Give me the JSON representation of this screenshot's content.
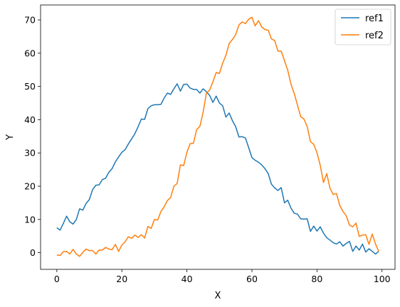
{
  "chart_data": {
    "type": "line",
    "title": "",
    "xlabel": "X",
    "ylabel": "Y",
    "xlim": [
      -5,
      104
    ],
    "ylim": [
      -5,
      74.5
    ],
    "xticks": [
      0,
      20,
      40,
      60,
      80,
      100
    ],
    "yticks": [
      0,
      10,
      20,
      30,
      40,
      50,
      60,
      70
    ],
    "grid": false,
    "legend_position": "top-right",
    "series": [
      {
        "name": "ref1",
        "color": "#1f77b4",
        "x": [
          0,
          1,
          2,
          3,
          4,
          5,
          6,
          7,
          8,
          9,
          10,
          11,
          12,
          13,
          14,
          15,
          16,
          17,
          18,
          19,
          20,
          21,
          22,
          23,
          24,
          25,
          26,
          27,
          28,
          29,
          30,
          31,
          32,
          33,
          34,
          35,
          36,
          37,
          38,
          39,
          40,
          41,
          42,
          43,
          44,
          45,
          46,
          47,
          48,
          49,
          50,
          51,
          52,
          53,
          54,
          55,
          56,
          57,
          58,
          59,
          60,
          61,
          62,
          63,
          64,
          65,
          66,
          67,
          68,
          69,
          70,
          71,
          72,
          73,
          74,
          75,
          76,
          77,
          78,
          79,
          80,
          81,
          82,
          83,
          84,
          85,
          86,
          87,
          88,
          89,
          90,
          91,
          92,
          93,
          94,
          95,
          96,
          97,
          98,
          99
        ],
        "y": [
          7.5,
          6.8,
          8.8,
          11.0,
          9.3,
          8.6,
          10.0,
          13.2,
          12.8,
          14.8,
          16.0,
          19.0,
          20.3,
          20.4,
          22.0,
          22.4,
          24.2,
          25.3,
          27.3,
          28.8,
          30.2,
          31.0,
          32.7,
          34.2,
          35.8,
          37.9,
          40.2,
          40.1,
          43.3,
          44.2,
          44.5,
          44.5,
          44.6,
          46.5,
          48.0,
          47.6,
          49.3,
          50.8,
          48.6,
          50.6,
          50.7,
          49.5,
          49.1,
          49.1,
          48.0,
          49.3,
          48.4,
          47.3,
          45.2,
          47.1,
          45.0,
          44.2,
          40.8,
          42.0,
          39.7,
          37.9,
          34.8,
          34.9,
          34.5,
          31.6,
          28.6,
          27.8,
          27.2,
          26.4,
          25.3,
          23.8,
          20.6,
          19.5,
          18.7,
          19.6,
          15.0,
          15.8,
          13.4,
          11.9,
          11.6,
          10.2,
          10.1,
          10.2,
          6.4,
          8.0,
          6.5,
          7.8,
          5.9,
          4.5,
          3.8,
          3.0,
          2.6,
          3.3,
          2.0,
          2.8,
          3.4,
          0.4,
          2.0,
          0.8,
          2.6,
          0.2,
          1.2,
          0.4,
          -0.4,
          0.4
        ]
      },
      {
        "name": "ref2",
        "color": "#ff7f0e",
        "x": [
          0,
          1,
          2,
          3,
          4,
          5,
          6,
          7,
          8,
          9,
          10,
          11,
          12,
          13,
          14,
          15,
          16,
          17,
          18,
          19,
          20,
          21,
          22,
          23,
          24,
          25,
          26,
          27,
          28,
          29,
          30,
          31,
          32,
          33,
          34,
          35,
          36,
          37,
          38,
          39,
          40,
          41,
          42,
          43,
          44,
          45,
          46,
          47,
          48,
          49,
          50,
          51,
          52,
          53,
          54,
          55,
          56,
          57,
          58,
          59,
          60,
          61,
          62,
          63,
          64,
          65,
          66,
          67,
          68,
          69,
          70,
          71,
          72,
          73,
          74,
          75,
          76,
          77,
          78,
          79,
          80,
          81,
          82,
          83,
          84,
          85,
          86,
          87,
          88,
          89,
          90,
          91,
          92,
          93,
          94,
          95,
          96,
          97,
          98,
          99
        ],
        "y": [
          -0.7,
          -0.8,
          0.3,
          0.4,
          -0.4,
          1.0,
          -0.4,
          -1.1,
          0.1,
          1.1,
          0.6,
          0.7,
          -0.4,
          0.8,
          0.8,
          1.6,
          1.1,
          0.9,
          2.5,
          0.4,
          2.3,
          3.3,
          4.8,
          4.3,
          5.3,
          4.6,
          5.4,
          4.4,
          7.9,
          7.3,
          10.0,
          9.8,
          12.4,
          13.8,
          15.7,
          16.6,
          20.0,
          20.8,
          26.4,
          26.2,
          30.2,
          32.8,
          32.9,
          37.0,
          38.0,
          42.3,
          48.0,
          48.9,
          51.4,
          54.2,
          53.9,
          57.0,
          59.4,
          62.9,
          64.1,
          65.6,
          68.5,
          69.4,
          68.9,
          70.2,
          70.8,
          68.2,
          69.8,
          67.9,
          67.1,
          66.9,
          64.3,
          63.8,
          60.6,
          60.6,
          57.8,
          54.9,
          50.7,
          47.9,
          44.4,
          40.9,
          40.2,
          37.9,
          33.4,
          32.6,
          30.1,
          26.3,
          21.1,
          23.8,
          19.4,
          17.5,
          17.8,
          14.2,
          12.4,
          11.1,
          8.3,
          7.8,
          8.9,
          4.9,
          5.3,
          5.4,
          2.5,
          5.6,
          2.6,
          0.4
        ]
      }
    ]
  }
}
